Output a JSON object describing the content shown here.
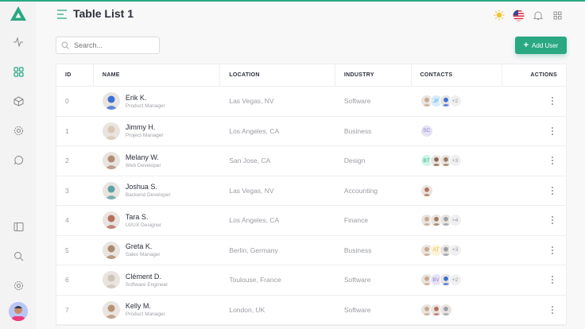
{
  "header": {
    "title": "Table List 1"
  },
  "search": {
    "placeholder": "Search..."
  },
  "toolbar": {
    "add_user_label": "Add User"
  },
  "colors": {
    "accent": "#2aa882",
    "sun": "#f5c12e"
  },
  "sidebar": {
    "items": [
      "activity-icon",
      "dashboard-icon",
      "box-icon",
      "cog-icon",
      "chat-icon",
      "sidebar-toggle-icon",
      "search-icon",
      "settings-icon"
    ]
  },
  "table": {
    "columns": [
      "ID",
      "NAME",
      "LOCATION",
      "INDUSTRY",
      "CONTACTS",
      "ACTIONS"
    ],
    "rows": [
      {
        "id": "0",
        "name": "Erik K.",
        "role": "Product Manager",
        "location": "Las Vegas, NV",
        "industry": "Software",
        "avatar": "#3b6fd4",
        "contacts": [
          {
            "p": "#c7a98e"
          },
          {
            "t": "JF",
            "bg": "#d5ecfb",
            "fg": "#4aa3df"
          },
          {
            "p": "#3b6fd4"
          }
        ],
        "more": "+2"
      },
      {
        "id": "1",
        "name": "Jimmy H.",
        "role": "Project Manager",
        "location": "Los Angeles, CA",
        "industry": "Business",
        "avatar": "#d8c7b5",
        "contacts": [
          {
            "t": "SC",
            "bg": "#e6e2f5",
            "fg": "#8f7fc7"
          }
        ],
        "more": ""
      },
      {
        "id": "2",
        "name": "Melany W.",
        "role": "Web Developer",
        "location": "San Jose, CA",
        "industry": "Design",
        "avatar": "#b08c74",
        "contacts": [
          {
            "t": "BT",
            "bg": "#cff5e8",
            "fg": "#2aa882"
          },
          {
            "p": "#8a6a55"
          },
          {
            "p": "#a07a60"
          }
        ],
        "more": "+3"
      },
      {
        "id": "3",
        "name": "Joshua S.",
        "role": "Backend Developer",
        "location": "Las Vegas, NV",
        "industry": "Accounting",
        "avatar": "#5fa0a6",
        "contacts": [
          {
            "p": "#b3705e"
          }
        ],
        "more": ""
      },
      {
        "id": "4",
        "name": "Tara S.",
        "role": "UI/UX Designer",
        "location": "Los Angeles, CA",
        "industry": "Finance",
        "avatar": "#b3705e",
        "contacts": [
          {
            "p": "#c7a98e"
          },
          {
            "p": "#a07a60"
          },
          {
            "p": "#9aa0a8"
          }
        ],
        "more": "+4"
      },
      {
        "id": "5",
        "name": "Greta K.",
        "role": "Sales Manager",
        "location": "Berlin, Germany",
        "industry": "Business",
        "avatar": "#a9886f",
        "contacts": [
          {
            "p": "#c7a98e"
          },
          {
            "t": "AT",
            "bg": "#fdf3d6",
            "fg": "#e8b84a"
          },
          {
            "p": "#9aa0a8"
          }
        ],
        "more": "+3"
      },
      {
        "id": "6",
        "name": "Clément D.",
        "role": "Software Engineer",
        "location": "Toulouse, France",
        "industry": "Software",
        "avatar": "#cdc4ba",
        "contacts": [
          {
            "p": "#c7a98e"
          },
          {
            "t": "BV",
            "bg": "#e6e2f5",
            "fg": "#8f7fc7"
          },
          {
            "p": "#3b6fd4"
          }
        ],
        "more": "+2"
      },
      {
        "id": "7",
        "name": "Kelly M.",
        "role": "Product Manager",
        "location": "London, UK",
        "industry": "Software",
        "avatar": "#b99274",
        "contacts": [
          {
            "p": "#c7a98e"
          },
          {
            "p": "#b3705e"
          },
          {
            "p": "#9aa0a8"
          }
        ],
        "more": ""
      }
    ]
  }
}
